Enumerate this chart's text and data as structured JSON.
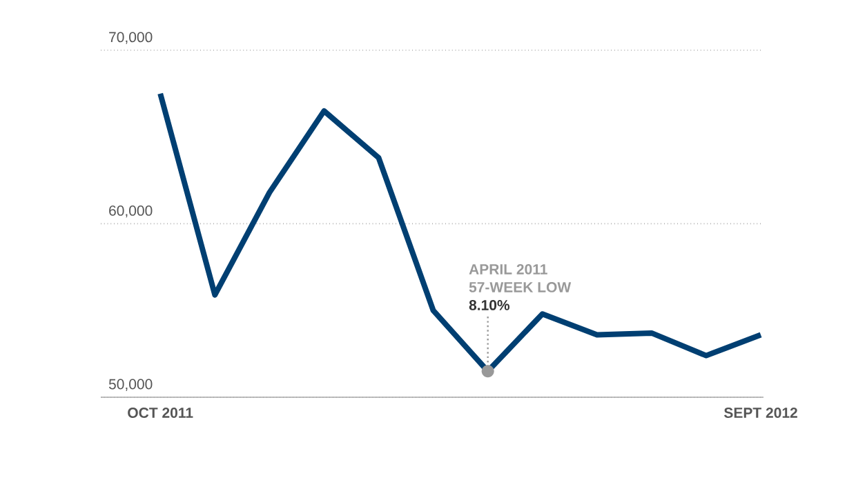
{
  "chart_data": {
    "type": "line",
    "categories": [
      "OCT 2011",
      null,
      null,
      null,
      null,
      null,
      null,
      null,
      null,
      null,
      null,
      "SEPT 2012"
    ],
    "values": [
      67500,
      55900,
      61800,
      66500,
      63800,
      55000,
      51500,
      54800,
      53600,
      53700,
      52400,
      53600
    ],
    "color": "#003f72",
    "ylim": [
      50000,
      70000
    ],
    "yticks": [
      {
        "value": 50000,
        "label": "50,000"
      },
      {
        "value": 60000,
        "label": "60,000"
      },
      {
        "value": 70000,
        "label": "70,000"
      }
    ],
    "grid": "y",
    "annotations": [
      "APRIL 2011",
      "57-WEEK LOW",
      {
        "text": "8.10%",
        "y": 51500
      }
    ]
  }
}
